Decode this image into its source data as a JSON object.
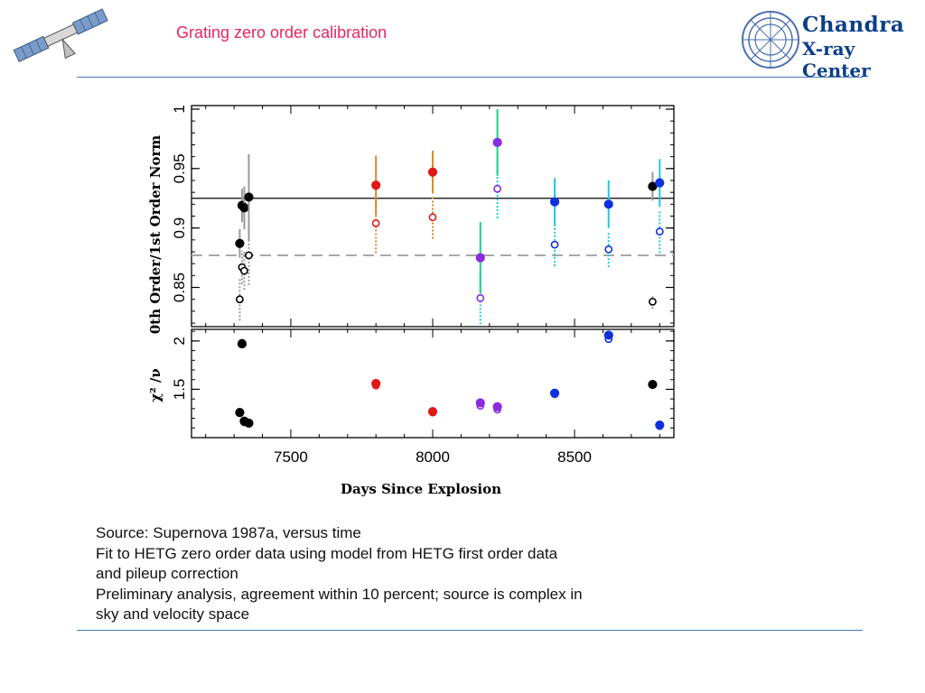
{
  "slide": {
    "title": "Grating zero order calibration",
    "logo_line1": "Chandra",
    "logo_line2": "X-ray Center",
    "caption": [
      "Source: Supernova 1987a, versus time",
      "Fit to HETG zero order data using model from  HETG first order data",
      "and pileup correction",
      "Preliminary analysis, agreement within 10 percent; source is complex in",
      "sky and velocity space"
    ]
  },
  "colors": {
    "title": "#e8265e",
    "rule": "#4a78b8",
    "black": "#000000",
    "gray_err": "#9a9a9a",
    "red": "#e01818",
    "orange_err": "#d88a2a",
    "purple": "#8a2be2",
    "green_err": "#18d08a",
    "blue": "#1030e0",
    "cyan_err": "#20c8e0"
  },
  "chart_data": [
    {
      "type": "scatter",
      "xlabel": "",
      "ylabel": "0th Order/1st Order Norm",
      "xlim": [
        7150,
        8850
      ],
      "ylim": [
        0.817,
        1.003
      ],
      "yticks": [
        0.85,
        0.9,
        0.95,
        1
      ],
      "reference_lines": [
        {
          "y": 0.925,
          "style": "solid"
        },
        {
          "y": 0.877,
          "style": "dashed"
        }
      ],
      "series": [
        {
          "color": "black",
          "filled": [
            {
              "x": 7320,
              "y": 0.887,
              "err": 0.012
            },
            {
              "x": 7328,
              "y": 0.919,
              "err": 0.014
            },
            {
              "x": 7336,
              "y": 0.917,
              "err": 0.018
            },
            {
              "x": 7352,
              "y": 0.926,
              "err": 0.036
            },
            {
              "x": 8775,
              "y": 0.935,
              "err": 0.012
            }
          ],
          "open": [
            {
              "x": 7320,
              "y": 0.84,
              "err": 0.018
            },
            {
              "x": 7328,
              "y": 0.867,
              "err": 0.014
            },
            {
              "x": 7336,
              "y": 0.864,
              "err": 0.016
            },
            {
              "x": 7352,
              "y": 0.877,
              "err": 0.025
            },
            {
              "x": 8775,
              "y": 0.838,
              "err": 0.006
            }
          ]
        },
        {
          "color": "red",
          "filled": [
            {
              "x": 7800,
              "y": 0.936,
              "err": 0.025
            },
            {
              "x": 8000,
              "y": 0.947,
              "err": 0.018
            }
          ],
          "open": [
            {
              "x": 7800,
              "y": 0.904,
              "err": 0.025
            },
            {
              "x": 8000,
              "y": 0.909,
              "err": 0.018
            }
          ]
        },
        {
          "color": "purple",
          "filled": [
            {
              "x": 8168,
              "y": 0.875,
              "err": 0.03
            },
            {
              "x": 8228,
              "y": 0.972,
              "err": 0.028
            }
          ],
          "open": [
            {
              "x": 8168,
              "y": 0.841,
              "err": 0.022
            },
            {
              "x": 8228,
              "y": 0.933,
              "err": 0.025
            }
          ]
        },
        {
          "color": "blue",
          "filled": [
            {
              "x": 8430,
              "y": 0.922,
              "err": 0.02
            },
            {
              "x": 8620,
              "y": 0.92,
              "err": 0.02
            },
            {
              "x": 8800,
              "y": 0.938,
              "err": 0.02
            }
          ],
          "open": [
            {
              "x": 8430,
              "y": 0.886,
              "err": 0.018
            },
            {
              "x": 8620,
              "y": 0.882,
              "err": 0.015
            },
            {
              "x": 8800,
              "y": 0.897,
              "err": 0.018
            }
          ]
        }
      ]
    },
    {
      "type": "scatter",
      "xlabel": "Days Since Explosion",
      "ylabel": "χ² /ν",
      "xlim": [
        7150,
        8850
      ],
      "ylim": [
        1.0,
        2.12
      ],
      "xticks": [
        7500,
        8000,
        8500
      ],
      "yticks": [
        1.5,
        2
      ],
      "series": [
        {
          "color": "black",
          "filled": [
            {
              "x": 7320,
              "y": 1.26
            },
            {
              "x": 7328,
              "y": 1.97
            },
            {
              "x": 7336,
              "y": 1.17
            },
            {
              "x": 7352,
              "y": 1.15
            },
            {
              "x": 8775,
              "y": 1.55
            }
          ],
          "open": [
            {
              "x": 7328,
              "y": 1.98
            },
            {
              "x": 7336,
              "y": 1.16
            }
          ]
        },
        {
          "color": "red",
          "filled": [
            {
              "x": 7800,
              "y": 1.56
            },
            {
              "x": 8000,
              "y": 1.27
            }
          ],
          "open": [
            {
              "x": 7800,
              "y": 1.54
            },
            {
              "x": 8000,
              "y": 1.26
            }
          ]
        },
        {
          "color": "purple",
          "filled": [
            {
              "x": 8168,
              "y": 1.36
            },
            {
              "x": 8228,
              "y": 1.32
            }
          ],
          "open": [
            {
              "x": 8168,
              "y": 1.33
            },
            {
              "x": 8228,
              "y": 1.29
            }
          ]
        },
        {
          "color": "blue",
          "filled": [
            {
              "x": 8430,
              "y": 1.46
            },
            {
              "x": 8620,
              "y": 2.06
            },
            {
              "x": 8800,
              "y": 1.13
            }
          ],
          "open": [
            {
              "x": 8430,
              "y": 1.45
            },
            {
              "x": 8620,
              "y": 2.02
            },
            {
              "x": 8800,
              "y": 1.12
            }
          ]
        }
      ]
    }
  ]
}
